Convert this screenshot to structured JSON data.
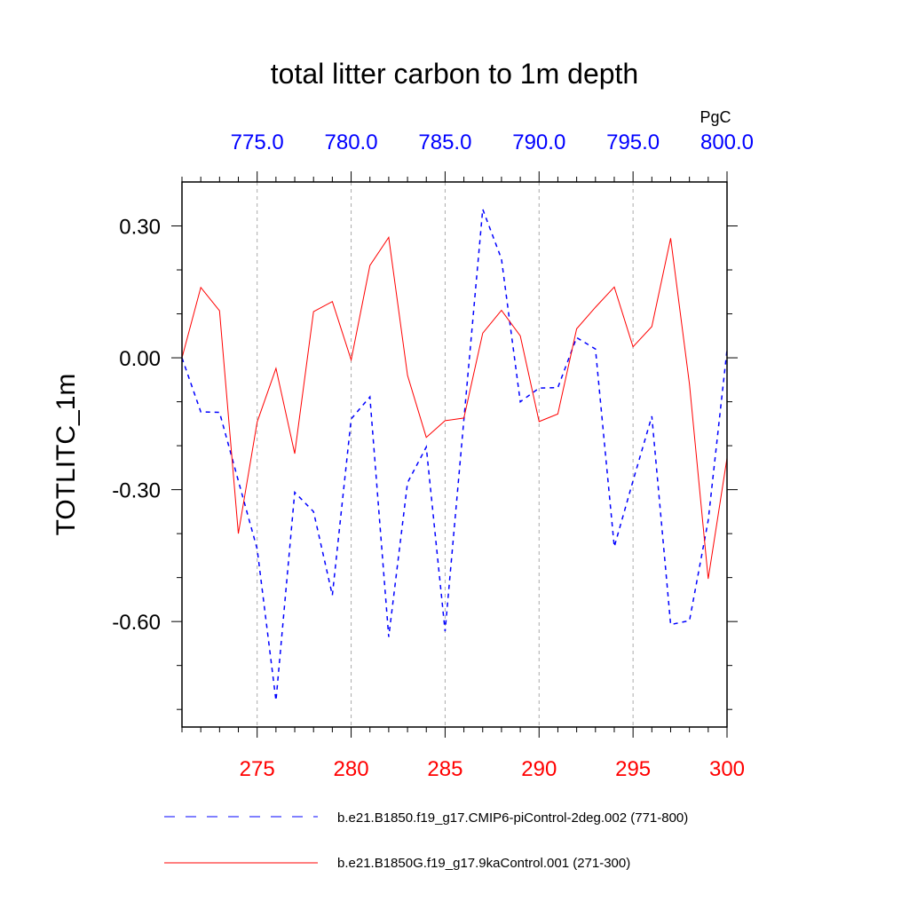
{
  "chart_data": {
    "type": "line",
    "title": "total litter carbon to 1m depth",
    "ylabel": "TOTLITC_1m",
    "units_label": "PgC",
    "xlim": [
      271,
      300
    ],
    "top_xlim": [
      771,
      800
    ],
    "ylim": [
      -0.84,
      0.4
    ],
    "grid": "vertical dashed at major x ticks",
    "legend_position": "bottom",
    "bottom_ticks": [
      "275",
      "280",
      "285",
      "290",
      "295",
      "300"
    ],
    "bottom_tick_values": [
      275,
      280,
      285,
      290,
      295,
      300
    ],
    "top_ticks": [
      "775.0",
      "780.0",
      "785.0",
      "790.0",
      "795.0",
      "800.0"
    ],
    "top_tick_values": [
      775,
      780,
      785,
      790,
      795,
      800
    ],
    "y_ticks": [
      "0.30",
      "0.00",
      "-0.30",
      "-0.60"
    ],
    "y_tick_values": [
      0.3,
      0.0,
      -0.3,
      -0.6
    ],
    "x": [
      271,
      272,
      273,
      274,
      275,
      276,
      277,
      278,
      279,
      280,
      281,
      282,
      283,
      284,
      285,
      286,
      287,
      288,
      289,
      290,
      291,
      292,
      293,
      294,
      295,
      296,
      297,
      298,
      299,
      300
    ],
    "series": [
      {
        "name": "b.e21.B1850.f19_g17.CMIP6-piControl-2deg.002 (771-800)",
        "color": "#0000ff",
        "style": "dashed",
        "axis": "top",
        "values": [
          0.0,
          -0.123,
          -0.124,
          -0.28,
          -0.435,
          -0.78,
          -0.306,
          -0.35,
          -0.54,
          -0.139,
          -0.089,
          -0.635,
          -0.284,
          -0.203,
          -0.622,
          -0.14,
          0.338,
          0.225,
          -0.1,
          -0.069,
          -0.068,
          0.046,
          0.02,
          -0.43,
          -0.28,
          -0.133,
          -0.607,
          -0.598,
          -0.37,
          0.018
        ]
      },
      {
        "name": "b.e21.B1850G.f19_g17.9kaControl.001 (271-300)",
        "color": "#ff0000",
        "style": "solid",
        "axis": "bottom",
        "values": [
          0.0,
          0.16,
          0.107,
          -0.4,
          -0.146,
          -0.024,
          -0.218,
          0.105,
          0.128,
          -0.005,
          0.21,
          0.274,
          -0.04,
          -0.181,
          -0.143,
          -0.137,
          0.056,
          0.108,
          0.05,
          -0.145,
          -0.128,
          0.066,
          0.115,
          0.161,
          0.025,
          0.071,
          0.272,
          -0.06,
          -0.503,
          -0.228
        ]
      }
    ]
  }
}
